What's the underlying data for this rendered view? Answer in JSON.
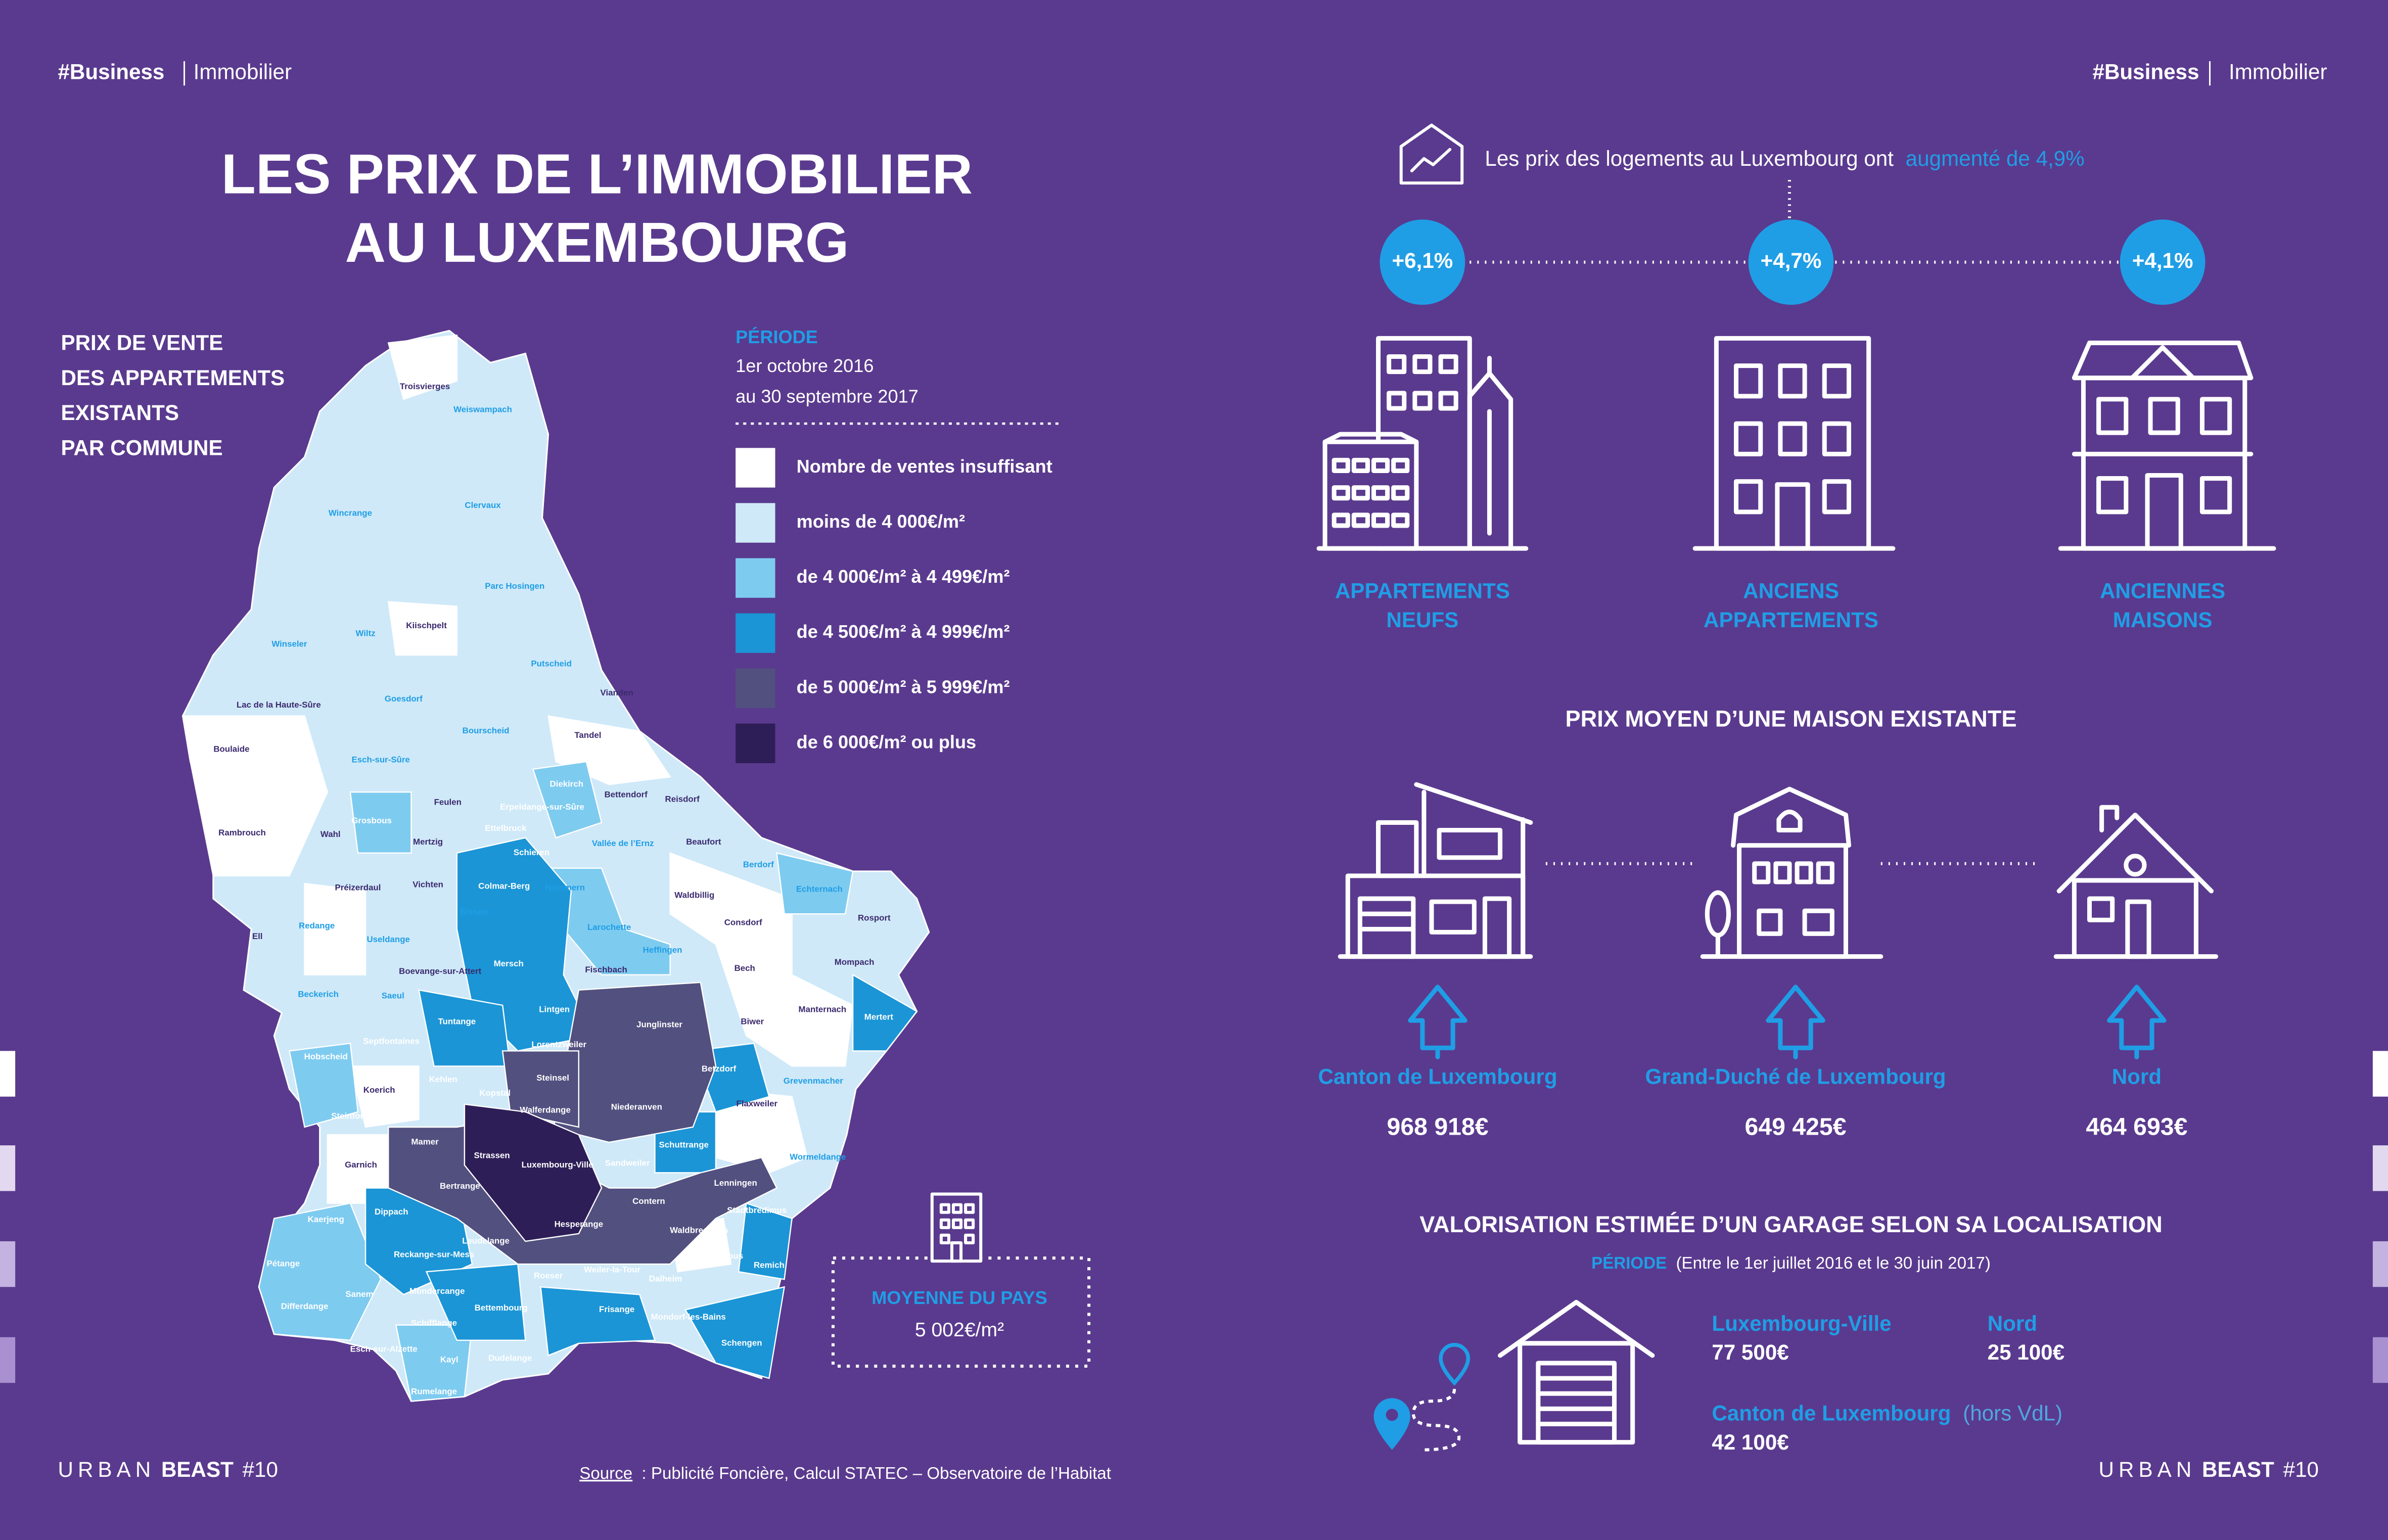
{
  "header": {
    "left": {
      "tag": "#Business",
      "section": "Immobilier"
    },
    "right": {
      "tag": "#Business",
      "section": "Immobilier"
    }
  },
  "title": [
    "LES PRIX DE L’IMMOBILIER",
    "AU LUXEMBOURG"
  ],
  "map": {
    "subtitle": [
      "PRIX DE VENTE",
      "DES APPARTEMENTS",
      "EXISTANTS",
      "PAR COMMUNE"
    ],
    "period": {
      "label": "PÉRIODE",
      "lines": [
        "1er octobre 2016",
        "au 30 septembre 2017"
      ]
    },
    "legend": [
      {
        "label": "Nombre de ventes insuffisant",
        "color": "#ffffff"
      },
      {
        "label": "moins de 4 000€/m²",
        "color": "#cfe9f8"
      },
      {
        "label": "de 4 000€/m² à 4 499€/m²",
        "color": "#7ecbf0"
      },
      {
        "label": "de 4 500€/m² à 4 999€/m²",
        "color": "#1b95d6"
      },
      {
        "label": "de 5 000€/m² à 5 999€/m²",
        "color": "#52507f"
      },
      {
        "label": "de 6 000€/m² ou plus",
        "color": "#2e1e57"
      }
    ],
    "communes": [
      "Troisvierges",
      "Weiswampach",
      "Wincrange",
      "Clervaux",
      "Parc Hosingen",
      "Kiischpelt",
      "Wiltz",
      "Winseler",
      "Putscheid",
      "Lac de la Haute-Sûre",
      "Goesdorf",
      "Vianden",
      "Bourscheid",
      "Tandel",
      "Boulaide",
      "Esch-sur-Sûre",
      "Bettendorf",
      "Reisdorf",
      "Diekirch",
      "Erpeldange-sur-Sûre",
      "Feulen",
      "Rambrouch",
      "Grosbous",
      "Ettelbruck",
      "Vallée de l’Ernz",
      "Beaufort",
      "Wahl",
      "Mertzig",
      "Schieren",
      "Berdorf",
      "Colmar-Berg",
      "Nommern",
      "Echternach",
      "Préizerdaul",
      "Vichten",
      "Waldbillig",
      "Larochette",
      "Consdorf",
      "Rosport",
      "Ell",
      "Redange",
      "Useldange",
      "Bissen",
      "Heffingen",
      "Boevange-sur-Attert",
      "Mersch",
      "Fischbach",
      "Bech",
      "Mompach",
      "Beckerich",
      "Saeul",
      "Lintgen",
      "Manternach",
      "Junglinster",
      "Biwer",
      "Mertert",
      "Tuntange",
      "Septfontaines",
      "Lorentzweiler",
      "Betzdorf",
      "Grevenmacher",
      "Hobscheid",
      "Kehlen",
      "Steinsel",
      "Koerich",
      "Kopstal",
      "Flaxweiler",
      "Niederanven",
      "Walferdange",
      "Steinfort",
      "Mamer",
      "Schuttrange",
      "Strassen",
      "Sandweiler",
      "Wormeldange",
      "Garnich",
      "Luxembourg-Ville",
      "Lenningen",
      "Bertrange",
      "Contern",
      "Stadtbredimus",
      "Dippach",
      "Hesperange",
      "Waldbredimus",
      "Kaerjeng",
      "Leudelange",
      "Reckange-sur-Mess",
      "Bous",
      "Remich",
      "Roeser",
      "Weiler-la-Tour",
      "Dalheim",
      "Pétange",
      "Mondercange",
      "Sanem",
      "Bettembourg",
      "Frisange",
      "Mondorf-les-Bains",
      "Differdange",
      "Schifflange",
      "Schengen",
      "Esch-sur-Alzette",
      "Kayl",
      "Dudelange",
      "Rumelange"
    ],
    "average": {
      "label": "MOYENNE DU PAYS",
      "value": "5 002€/m²"
    }
  },
  "increase": {
    "text": "Les prix des logements au Luxembourg ont",
    "highlight": "augmenté de 4,9%",
    "items": [
      {
        "change": "+6,1%",
        "label": [
          "APPARTEMENTS",
          "NEUFS"
        ]
      },
      {
        "change": "+4,7%",
        "label": [
          "ANCIENS",
          "APPARTEMENTS"
        ]
      },
      {
        "change": "+4,1%",
        "label": [
          "ANCIENNES",
          "MAISONS"
        ]
      }
    ]
  },
  "house_price": {
    "title": "PRIX MOYEN D’UNE MAISON EXISTANTE",
    "items": [
      {
        "region": "Canton de Luxembourg",
        "price": "968 918€"
      },
      {
        "region": "Grand-Duché de Luxembourg",
        "price": "649 425€"
      },
      {
        "region": "Nord",
        "price": "464 693€"
      }
    ]
  },
  "garage": {
    "title": "VALORISATION ESTIMÉE D’UN GARAGE SELON SA LOCALISATION",
    "period_label": "PÉRIODE",
    "period_text": "(Entre le 1er juillet 2016 et le 30 juin 2017)",
    "items": [
      {
        "place": "Luxembourg-Ville",
        "value": "77 500€"
      },
      {
        "place": "Nord",
        "value": "25 100€"
      },
      {
        "place": "Canton de Luxembourg",
        "note": "(hors VdL)",
        "value": "42 100€"
      }
    ]
  },
  "footer": {
    "brand": "URBAN",
    "brand_bold": "BEAST",
    "issue": "#10",
    "source_label": "Source",
    "source_text": ": Publicité Foncière, Calcul STATEC – Observatoire de l’Habitat"
  }
}
